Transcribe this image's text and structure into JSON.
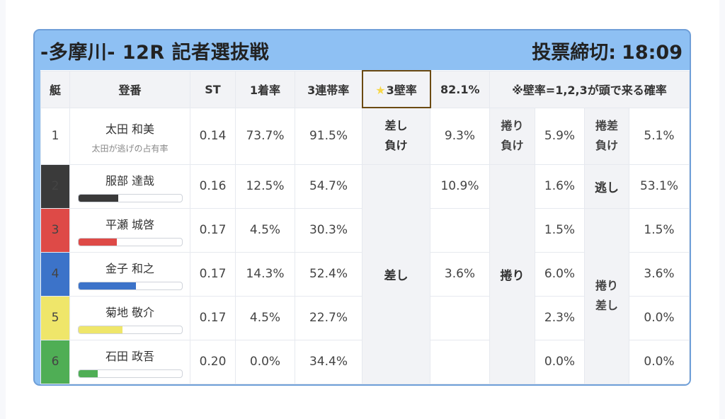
{
  "header": {
    "race_title": "-多摩川- 12R 記者選抜戦",
    "deadline_label": "投票締切:",
    "deadline_time": "18:09"
  },
  "columns": {
    "lane": "艇",
    "name": "登番",
    "st": "ST",
    "first_rate": "1着率",
    "top3_rate": "3連帯率",
    "wall_star": "★",
    "wall_label": "3壁率",
    "wall_value": "82.1%",
    "note": "※壁率=1,2,3が頭で来る確率"
  },
  "racers": [
    {
      "lane": "1",
      "name": "太田 和美",
      "sub": "太田が逃げの占有率",
      "st": "0.14",
      "first": "73.7%",
      "top3": "91.5%",
      "bar_fraction": 0,
      "bar_color": "#ffffff"
    },
    {
      "lane": "2",
      "name": "服部 達哉",
      "st": "0.16",
      "first": "12.5%",
      "top3": "54.7%",
      "bar_fraction": 0.39,
      "bar_color": "#3a3a3a"
    },
    {
      "lane": "3",
      "name": "平瀬 城啓",
      "st": "0.17",
      "first": "4.5%",
      "top3": "30.3%",
      "bar_fraction": 0.37,
      "bar_color": "#de4a47"
    },
    {
      "lane": "4",
      "name": "金子 和之",
      "st": "0.17",
      "first": "14.3%",
      "top3": "52.4%",
      "bar_fraction": 0.56,
      "bar_color": "#3c73c9"
    },
    {
      "lane": "5",
      "name": "菊地 敬介",
      "st": "0.17",
      "first": "4.5%",
      "top3": "22.7%",
      "bar_fraction": 0.43,
      "bar_color": "#efe66a"
    },
    {
      "lane": "6",
      "name": "石田 政吾",
      "st": "0.20",
      "first": "0.0%",
      "top3": "34.4%",
      "bar_fraction": 0.19,
      "bar_color": "#4fae55"
    }
  ],
  "row1_patterns": {
    "sashi_make_l1": "差し",
    "sashi_make_l2": "負け",
    "sashi_make_pct": "9.3%",
    "makuri_make_l1": "捲り",
    "makuri_make_l2": "負け",
    "makuri_make_pct": "5.9%",
    "makurisashi_make_l1": "捲差",
    "makurisashi_make_l2": "負け",
    "makurisashi_make_pct": "5.1%"
  },
  "patterns": {
    "sashi_label": "差し",
    "makuri_label": "捲り",
    "nige_label": "逃し",
    "makurisashi_l1": "捲り",
    "makurisashi_l2": "差し"
  },
  "sashi_pcts": [
    "10.9%",
    "",
    "3.6%",
    "",
    ""
  ],
  "makuri_pcts": [
    "1.6%",
    "1.5%",
    "6.0%",
    "2.3%",
    "0.0%"
  ],
  "nige_pct": "53.1%",
  "makurisashi_pcts": [
    "1.5%",
    "3.6%",
    "0.0%",
    "0.0%"
  ]
}
